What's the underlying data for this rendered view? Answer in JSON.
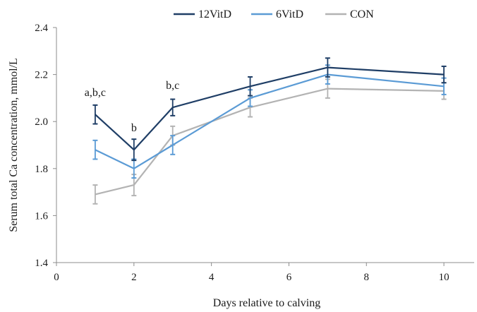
{
  "chart_data": {
    "type": "line",
    "title": "",
    "xlabel": "Days relative to calving",
    "ylabel": "Serum total Ca concentration, mmol/L",
    "xlim": [
      0,
      11
    ],
    "ylim": [
      1.4,
      2.4
    ],
    "xticks": [
      0,
      2,
      4,
      6,
      8,
      10
    ],
    "yticks": [
      1.4,
      1.6,
      1.8,
      2.0,
      2.2,
      2.4
    ],
    "xtick_labels": [
      "0",
      "2",
      "4",
      "6",
      "8",
      "10"
    ],
    "ytick_labels": [
      "1.4",
      "1.6",
      "1.8",
      "2.0",
      "2.2",
      "2.4"
    ],
    "grid": false,
    "legend_position": "top",
    "series": [
      {
        "name": "12VitD",
        "color": "#1f3e66",
        "x": [
          1,
          2,
          3,
          5,
          7,
          10
        ],
        "y": [
          2.03,
          1.88,
          2.06,
          2.15,
          2.23,
          2.2
        ],
        "err": [
          0.04,
          0.045,
          0.035,
          0.04,
          0.04,
          0.035
        ]
      },
      {
        "name": "6VitD",
        "color": "#5b9bd5",
        "x": [
          1,
          2,
          3,
          5,
          7,
          10
        ],
        "y": [
          1.88,
          1.8,
          1.9,
          2.1,
          2.2,
          2.15
        ],
        "err": [
          0.04,
          0.04,
          0.04,
          0.035,
          0.04,
          0.035
        ]
      },
      {
        "name": "CON",
        "color": "#b3b3b3",
        "x": [
          1,
          2,
          3,
          5,
          7,
          10
        ],
        "y": [
          1.69,
          1.73,
          1.94,
          2.06,
          2.14,
          2.13
        ],
        "err": [
          0.04,
          0.045,
          0.04,
          0.04,
          0.04,
          0.035
        ]
      }
    ],
    "annotations": [
      {
        "text": "a,b,c",
        "x": 1,
        "y": 2.03
      },
      {
        "text": "b",
        "x": 2,
        "y": 1.88
      },
      {
        "text": "b,c",
        "x": 3,
        "y": 2.06
      }
    ]
  }
}
